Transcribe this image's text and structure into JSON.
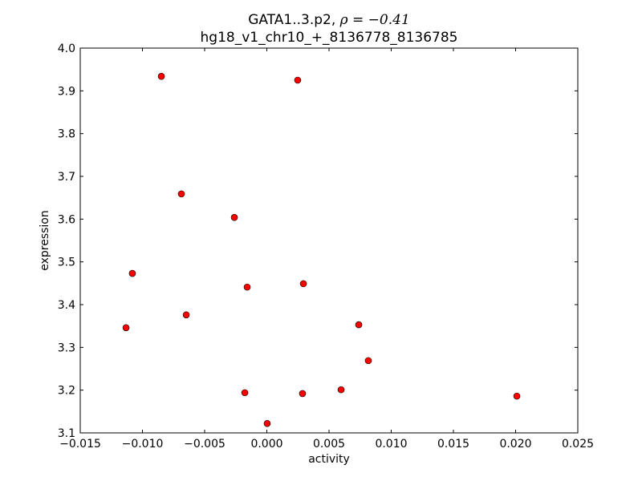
{
  "chart_data": {
    "type": "scatter",
    "title_line1_prefix": "GATA1..3.p2, ",
    "title_line1_math": "ρ = −0.41",
    "title_line2": "hg18_v1_chr10_+_8136778_8136785",
    "xlabel": "activity",
    "ylabel": "expression",
    "xlim": [
      -0.015,
      0.025
    ],
    "ylim": [
      3.1,
      4.0
    ],
    "xticks": [
      "−0.015",
      "−0.010",
      "−0.005",
      "0.000",
      "0.005",
      "0.010",
      "0.015",
      "0.020",
      "0.025"
    ],
    "xtick_values": [
      -0.015,
      -0.01,
      -0.005,
      0.0,
      0.005,
      0.01,
      0.015,
      0.02,
      0.025
    ],
    "yticks": [
      "3.1",
      "3.2",
      "3.3",
      "3.4",
      "3.5",
      "3.6",
      "3.7",
      "3.8",
      "3.9",
      "4.0"
    ],
    "ytick_values": [
      3.1,
      3.2,
      3.3,
      3.4,
      3.5,
      3.6,
      3.7,
      3.8,
      3.9,
      4.0
    ],
    "marker_color": "#ff0000",
    "points": [
      {
        "x": -0.00848,
        "y": 3.934
      },
      {
        "x": 0.00248,
        "y": 3.925
      },
      {
        "x": -0.00687,
        "y": 3.659
      },
      {
        "x": -0.00261,
        "y": 3.604
      },
      {
        "x": -0.01081,
        "y": 3.473
      },
      {
        "x": -0.00158,
        "y": 3.441
      },
      {
        "x": 0.00294,
        "y": 3.449
      },
      {
        "x": -0.00648,
        "y": 3.376
      },
      {
        "x": -0.01132,
        "y": 3.346
      },
      {
        "x": 0.00739,
        "y": 3.353
      },
      {
        "x": 0.00816,
        "y": 3.269
      },
      {
        "x": -0.00177,
        "y": 3.194
      },
      {
        "x": 0.00287,
        "y": 3.192
      },
      {
        "x": 0.00597,
        "y": 3.201
      },
      {
        "x": 0.0201,
        "y": 3.186
      },
      {
        "x": 3e-05,
        "y": 3.122
      }
    ]
  }
}
